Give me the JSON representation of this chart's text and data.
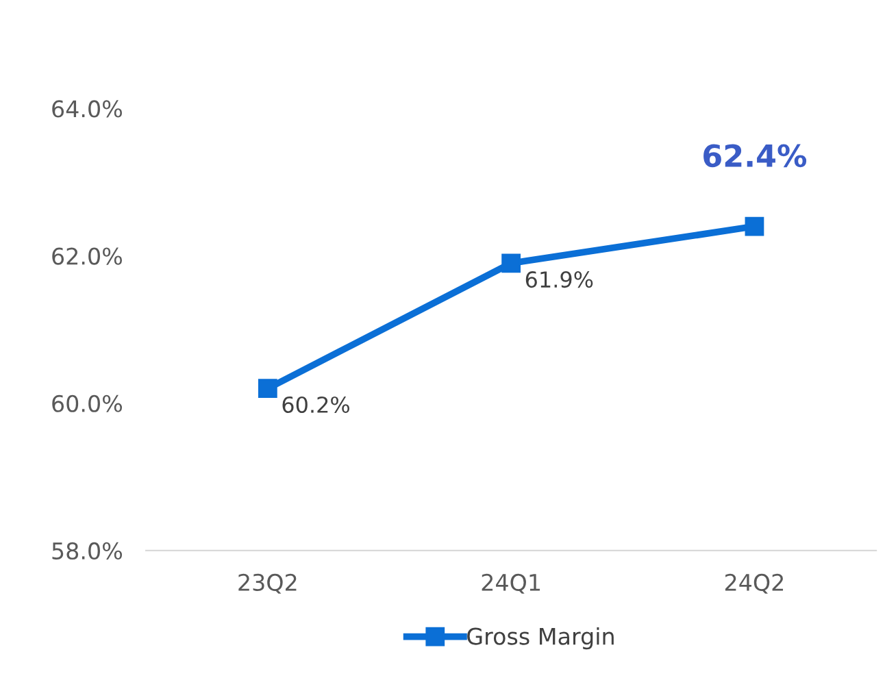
{
  "chart_data": {
    "type": "line",
    "categories": [
      "23Q2",
      "24Q1",
      "24Q2"
    ],
    "series": [
      {
        "name": "Gross Margin",
        "color": "#0b6fd6",
        "values": [
          60.2,
          61.9,
          62.4
        ],
        "value_labels": [
          "60.2%",
          "61.9%",
          "62.4%"
        ]
      }
    ],
    "ylim": [
      58,
      64
    ],
    "yticks": [
      {
        "value": 58,
        "label": "58.0%"
      },
      {
        "value": 60,
        "label": "60.0%"
      },
      {
        "value": 62,
        "label": "62.0%"
      },
      {
        "value": 64,
        "label": "64.0%"
      }
    ],
    "marker": "square",
    "line_style": "solid",
    "grid": false,
    "legend": "bottom"
  }
}
